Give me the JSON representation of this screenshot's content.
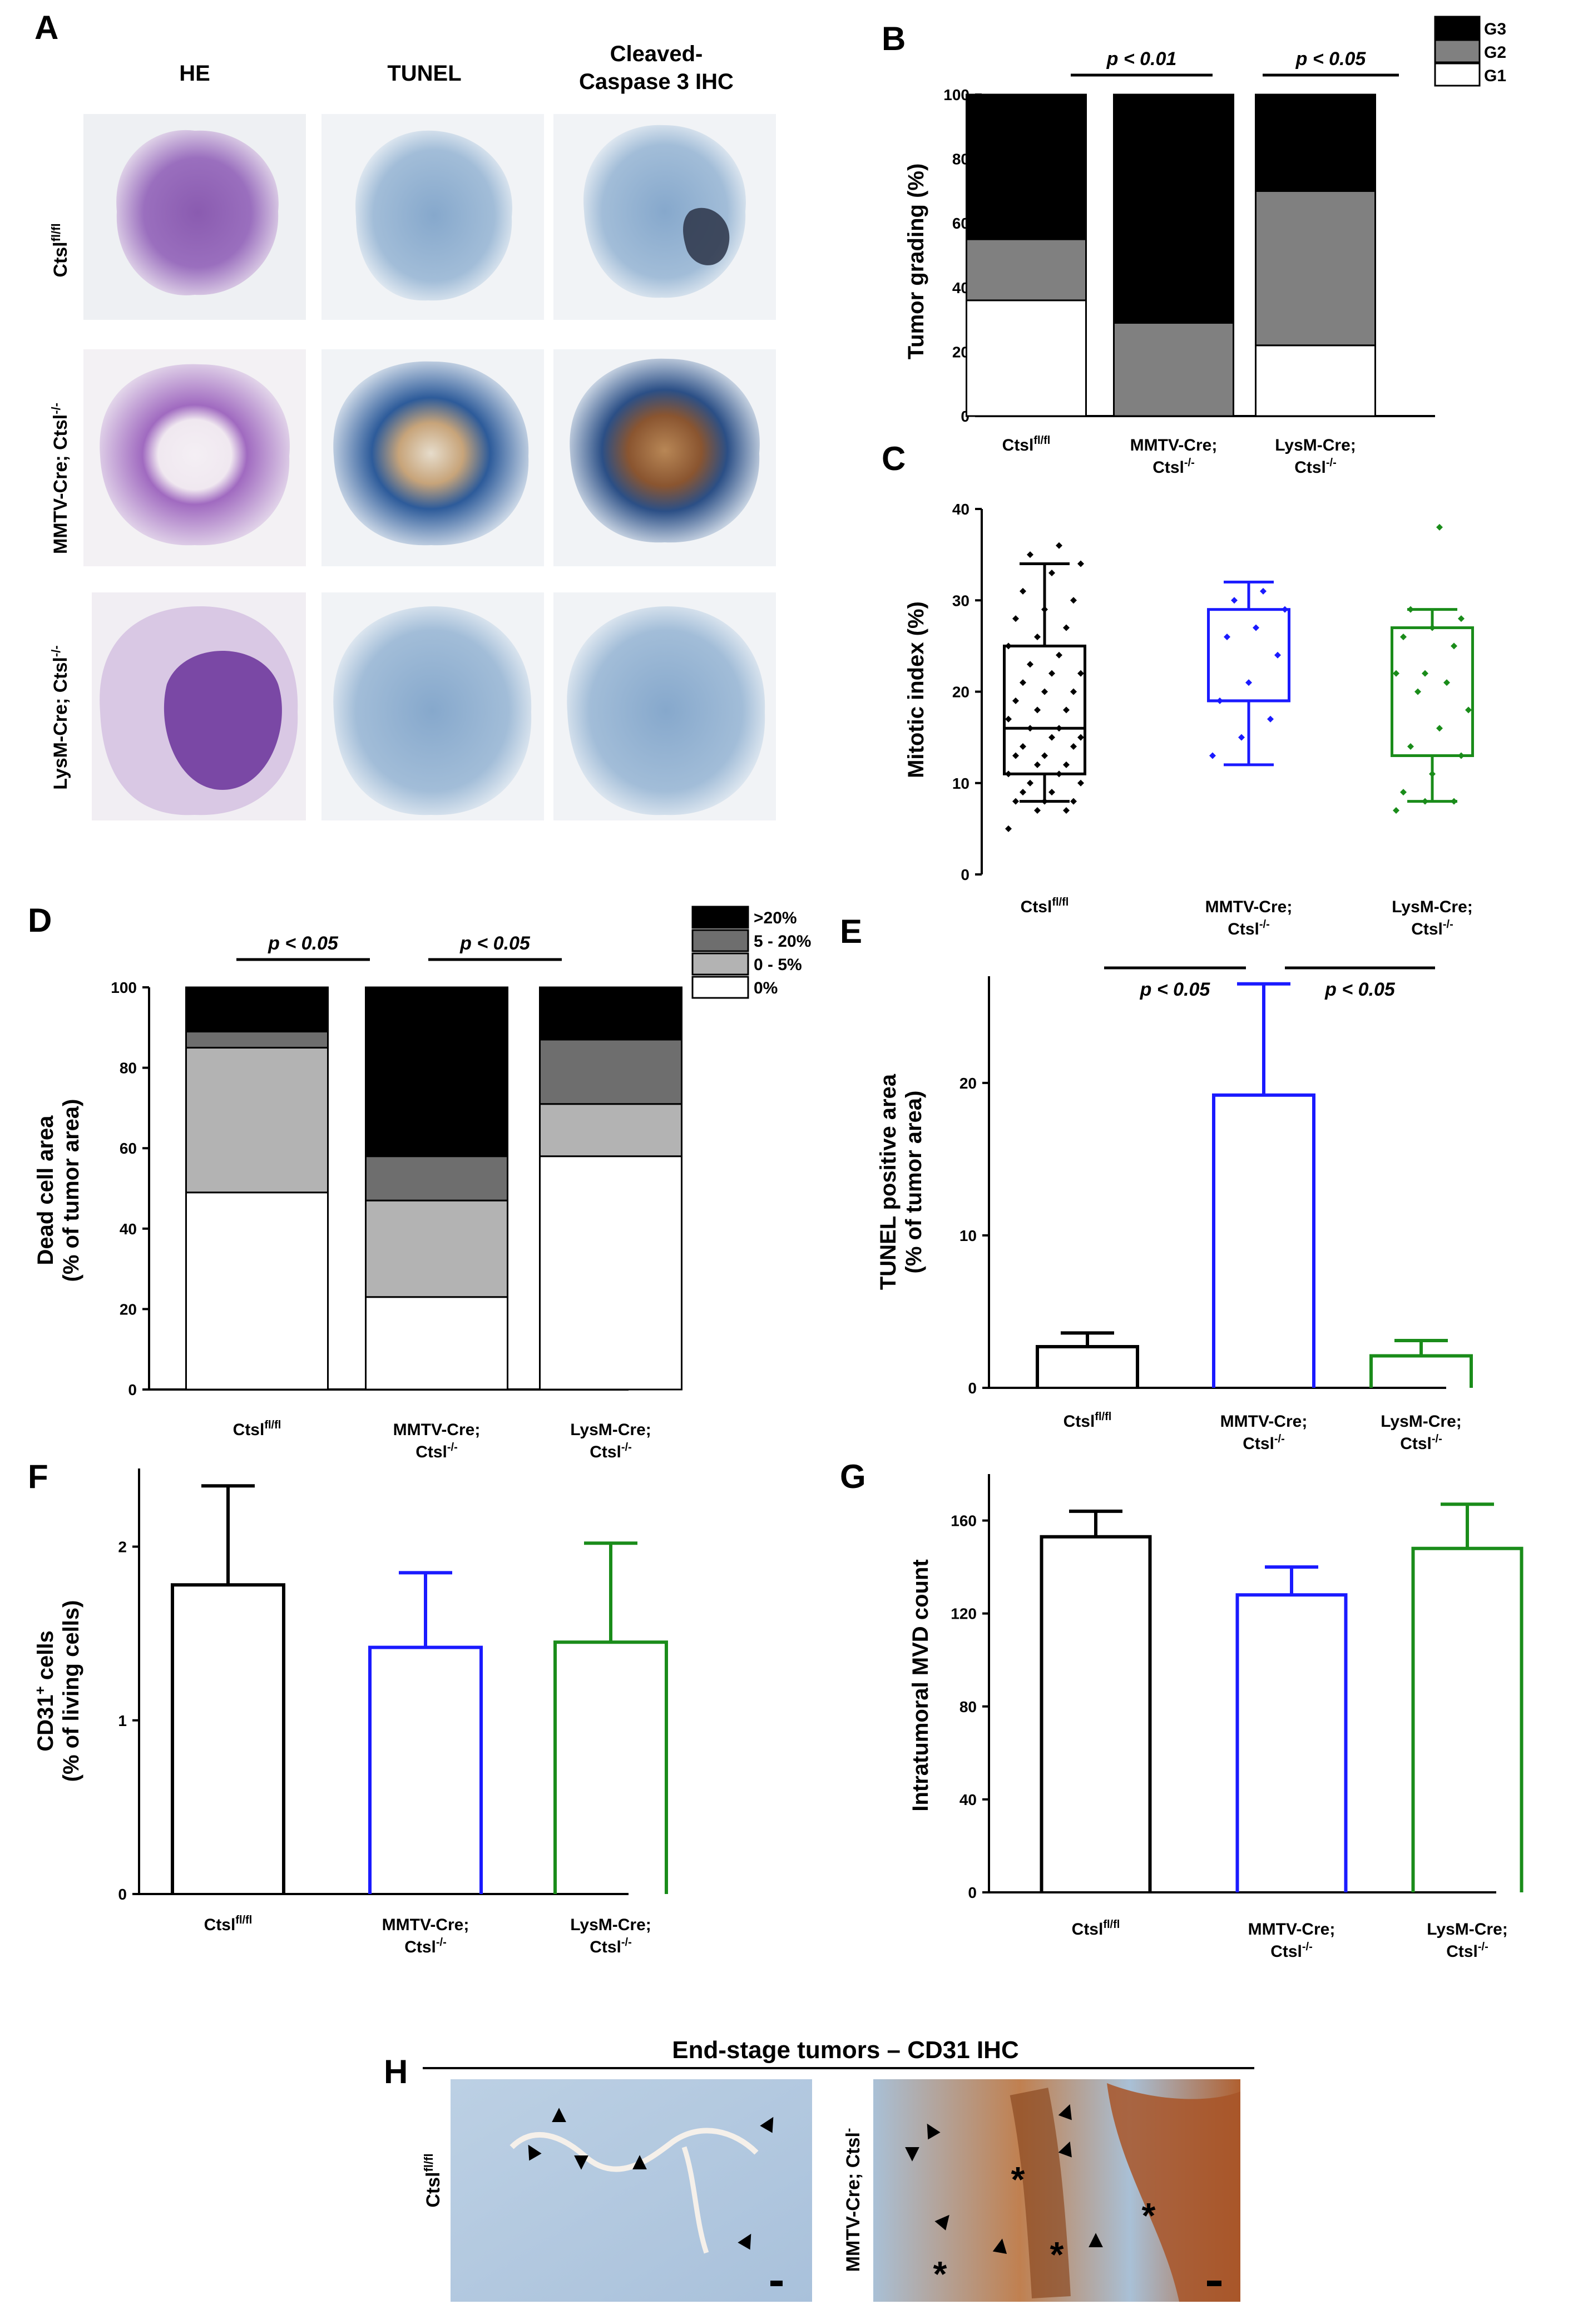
{
  "panel_a": {
    "letter": "A",
    "columns": [
      "HE",
      "TUNEL",
      "Cleaved-",
      "Caspase 3 IHC"
    ],
    "rows": [
      {
        "base": "Ctsl",
        "sup": "fl/fl"
      },
      {
        "base": "MMTV-Cre; Ctsl",
        "sup": "-/-"
      },
      {
        "base": "LysM-Cre; Ctsl",
        "sup": "-/-"
      }
    ]
  },
  "categories": [
    {
      "l1": "Ctsl",
      "sup": "fl/fl",
      "l2": ""
    },
    {
      "l1": "MMTV-Cre;",
      "sup": "",
      "l2": "Ctsl",
      "sup2": "-/-"
    },
    {
      "l1": "LysM-Cre;",
      "sup": "",
      "l2": "Ctsl",
      "sup2": "-/-"
    }
  ],
  "series_colors": [
    "#000000",
    "#1a1aff",
    "#1a8c1a"
  ],
  "chart_data": [
    {
      "panel": "B",
      "type": "bar",
      "stacked": true,
      "ylabel": "Tumor grading (%)",
      "ylim": [
        0,
        100
      ],
      "yticks": [
        0,
        20,
        40,
        60,
        80,
        100
      ],
      "series": [
        {
          "name": "G1",
          "color": "#ffffff",
          "values": [
            36,
            0,
            22
          ]
        },
        {
          "name": "G2",
          "color": "#808080",
          "values": [
            19,
            29,
            48
          ]
        },
        {
          "name": "G3",
          "color": "#000000",
          "values": [
            45,
            71,
            30
          ]
        }
      ],
      "legend": [
        "G3",
        "G2",
        "G1"
      ],
      "annotations": [
        "p < 0.01",
        "p < 0.05"
      ]
    },
    {
      "panel": "C",
      "type": "box",
      "ylabel": "Mitotic index (%)",
      "ylim": [
        0,
        40
      ],
      "yticks": [
        0,
        10,
        20,
        30,
        40
      ],
      "boxes": [
        {
          "min": 8,
          "q1": 11,
          "median": 16,
          "q3": 25,
          "max": 34,
          "points": [
            5,
            7,
            7,
            8,
            8,
            8,
            9,
            9,
            10,
            10,
            11,
            11,
            12,
            12,
            13,
            13,
            14,
            14,
            15,
            15,
            16,
            16,
            17,
            18,
            18,
            19,
            20,
            20,
            21,
            22,
            22,
            23,
            24,
            25,
            26,
            27,
            28,
            29,
            30,
            31,
            33,
            34,
            35,
            36
          ]
        },
        {
          "min": 12,
          "q1": 19,
          "median": 19,
          "q3": 29,
          "max": 32,
          "points": [
            13,
            15,
            17,
            19,
            21,
            24,
            26,
            27,
            29,
            30,
            31
          ]
        },
        {
          "min": 8,
          "q1": 13,
          "median": 13,
          "q3": 27,
          "max": 29,
          "points": [
            7,
            8,
            8,
            9,
            11,
            13,
            14,
            16,
            18,
            20,
            21,
            22,
            22,
            25,
            26,
            27,
            28,
            29,
            38
          ]
        }
      ]
    },
    {
      "panel": "D",
      "type": "bar",
      "stacked": true,
      "ylabel": "Dead cell area",
      "ylabel2": "(% of tumor area)",
      "ylim": [
        0,
        100
      ],
      "yticks": [
        0,
        20,
        40,
        60,
        80,
        100
      ],
      "series": [
        {
          "name": "0%",
          "color": "#ffffff",
          "values": [
            49,
            23,
            58
          ]
        },
        {
          "name": "0 - 5%",
          "color": "#b3b3b3",
          "values": [
            36,
            24,
            13
          ]
        },
        {
          "name": "5 - 20%",
          "color": "#6e6e6e",
          "values": [
            4,
            11,
            16
          ]
        },
        {
          "name": ">20%",
          "color": "#000000",
          "values": [
            11,
            42,
            13
          ]
        }
      ],
      "legend": [
        ">20%",
        "5 - 20%",
        "0 - 5%",
        "0%"
      ],
      "annotations": [
        "p < 0.05",
        "p < 0.05"
      ]
    },
    {
      "panel": "E",
      "type": "bar",
      "ylabel": "TUNEL positive area",
      "ylabel2": "(% of tumor area)",
      "ylim": [
        0,
        27
      ],
      "yticks": [
        0,
        10,
        20
      ],
      "values": [
        2.7,
        19.2,
        2.1
      ],
      "errors": [
        0.9,
        7.3,
        1.0
      ],
      "annotations": [
        "p < 0.05",
        "p < 0.05"
      ]
    },
    {
      "panel": "F",
      "type": "bar",
      "ylabel": "CD31",
      "ylabel_sup": "+",
      "ylabel_rest": " cells",
      "ylabel2": "(% of living cells)",
      "ylim": [
        0,
        2.45
      ],
      "yticks": [
        0,
        1,
        2
      ],
      "values": [
        1.78,
        1.42,
        1.45
      ],
      "errors": [
        0.57,
        0.43,
        0.57
      ]
    },
    {
      "panel": "G",
      "type": "bar",
      "ylabel": "Intratumoral MVD count",
      "ylim": [
        0,
        180
      ],
      "yticks": [
        0,
        40,
        80,
        120,
        160
      ],
      "values": [
        153,
        128,
        148
      ],
      "errors": [
        11,
        12,
        19
      ]
    }
  ],
  "panel_h": {
    "letter": "H",
    "title": "End-stage tumors – CD31 IHC",
    "left_label": {
      "base": "Ctsl",
      "sup": "fl/fl"
    },
    "right_label": {
      "base": "MMTV-Cre; Ctsl",
      "sup": "-",
      "tail": "/-"
    },
    "arrow": "▲",
    "asterisk": "*"
  }
}
